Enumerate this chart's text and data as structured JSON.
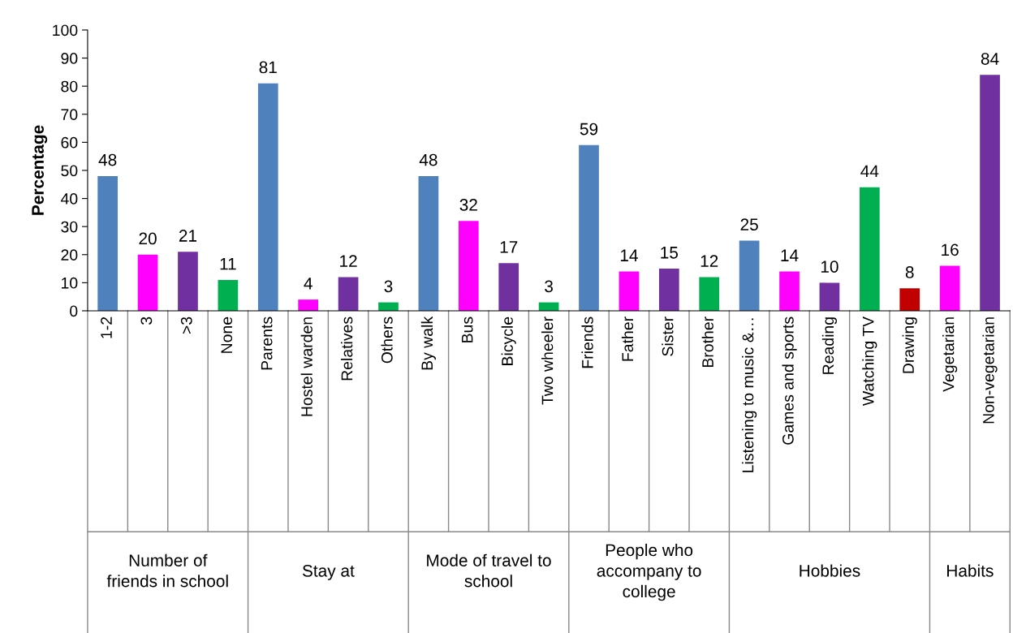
{
  "chart_data": {
    "type": "bar",
    "ylabel": "Percentage",
    "categories": [
      "1-2",
      "3",
      ">3",
      "None",
      "Parents",
      "Hostel warden",
      "Relatives",
      "Others",
      "By walk",
      "Bus",
      "Bicycle",
      "Two wheeler",
      "Friends",
      "Father",
      "Sister",
      "Brother",
      "Listening to music &…",
      "Games and sports",
      "Reading",
      "Watching TV",
      "Drawing",
      "Vegetarian",
      "Non-vegetarian"
    ],
    "values": [
      48,
      20,
      21,
      11,
      81,
      4,
      12,
      3,
      48,
      32,
      17,
      3,
      59,
      14,
      15,
      12,
      25,
      14,
      10,
      44,
      8,
      16,
      84
    ],
    "colors": [
      "#4f81bd",
      "#ff00ff",
      "#7030a0",
      "#00b050",
      "#4f81bd",
      "#ff00ff",
      "#7030a0",
      "#00b050",
      "#4f81bd",
      "#ff00ff",
      "#7030a0",
      "#00b050",
      "#4f81bd",
      "#ff00ff",
      "#7030a0",
      "#00b050",
      "#4f81bd",
      "#ff00ff",
      "#7030a0",
      "#00b050",
      "#c00000",
      "#ff00ff",
      "#7030a0"
    ],
    "ylim": [
      0,
      100
    ],
    "yticks": [
      0,
      10,
      20,
      30,
      40,
      50,
      60,
      70,
      80,
      90,
      100
    ],
    "data_labels": true,
    "grid": false,
    "legend": false,
    "annotations": [
      "Number of\nfriends in school",
      "Stay at",
      "Mode of travel to\nschool",
      "People who\naccompany to\ncollege",
      "Hobbies",
      "Habits"
    ]
  }
}
